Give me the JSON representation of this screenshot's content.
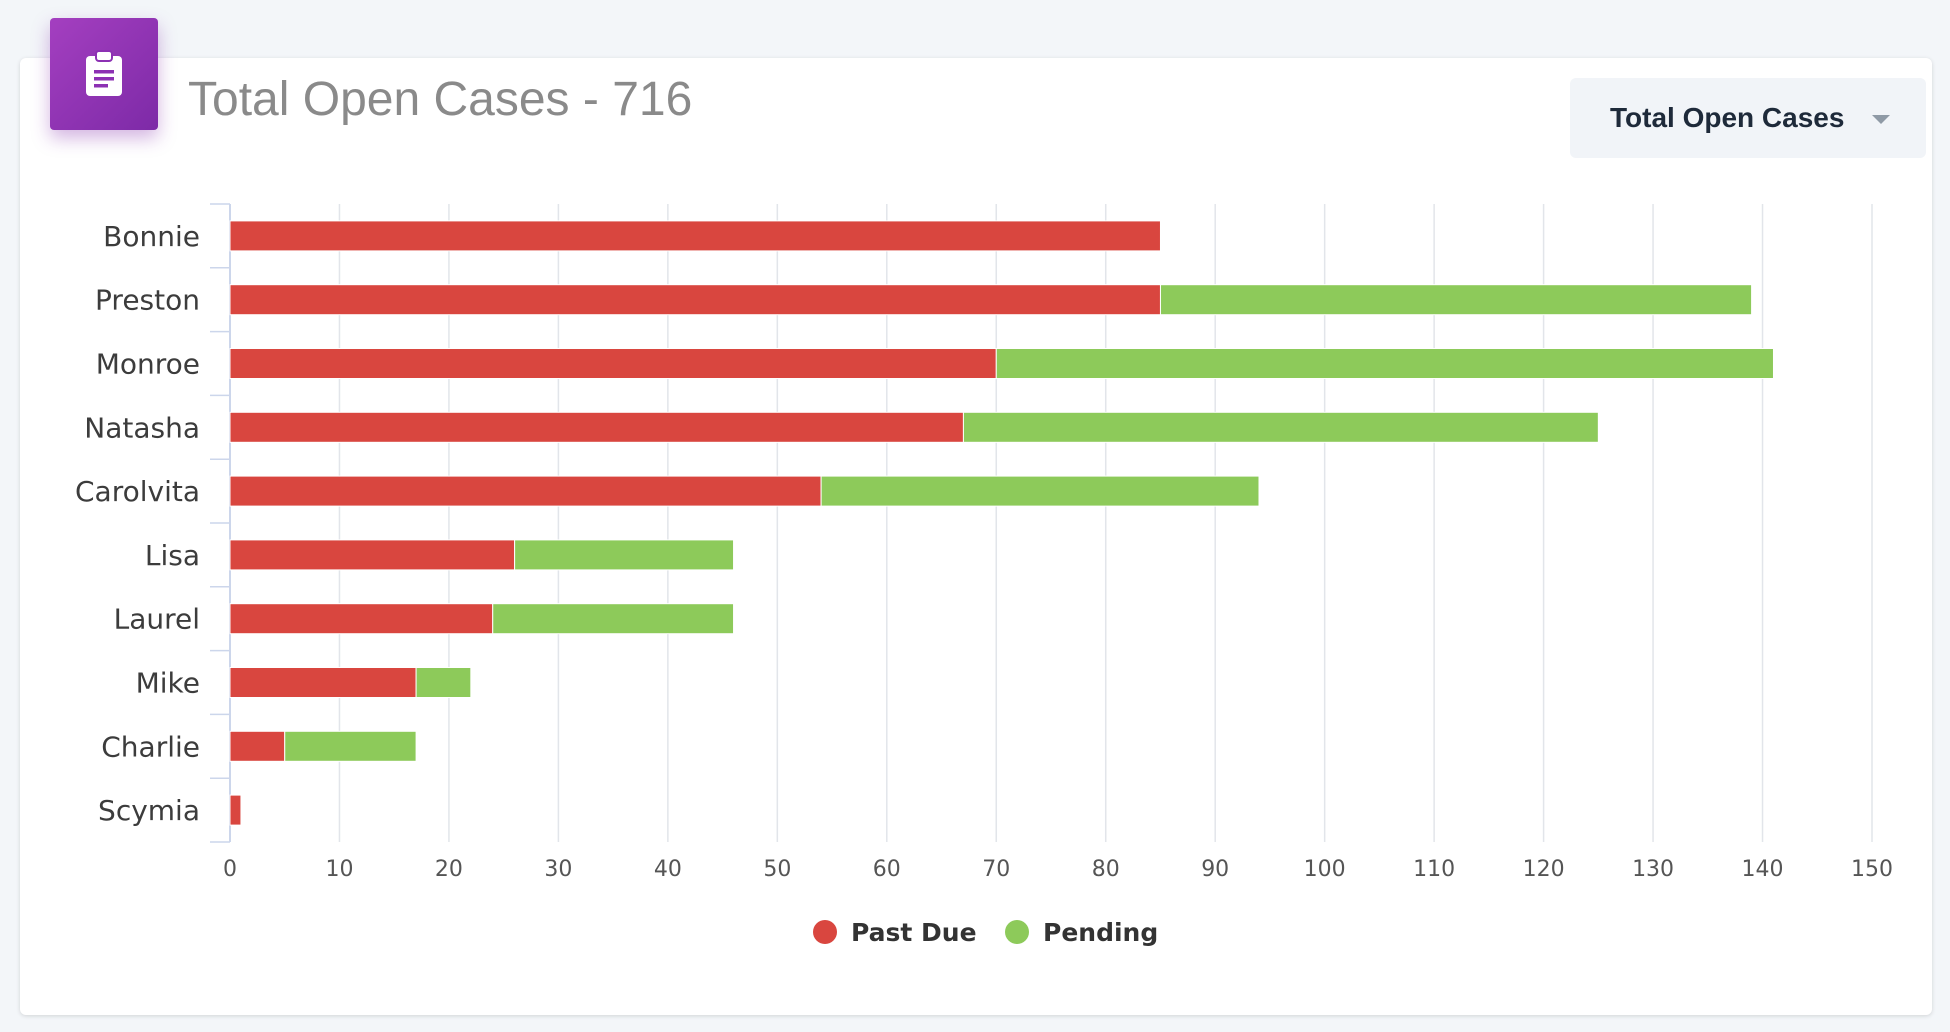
{
  "header": {
    "title": "Total Open Cases - 716",
    "icon": "clipboard-icon",
    "icon_gradient": [
      "#a43fc0",
      "#7d2aa7"
    ]
  },
  "dropdown": {
    "selected": "Total Open Cases"
  },
  "chart_data": {
    "type": "bar",
    "orientation": "horizontal",
    "stacked": true,
    "categories": [
      "Bonnie",
      "Preston",
      "Monroe",
      "Natasha",
      "Carolvita",
      "Lisa",
      "Laurel",
      "Mike",
      "Charlie",
      "Scymia"
    ],
    "series": [
      {
        "name": "Past Due",
        "color": "#d9463f",
        "values": [
          85,
          85,
          70,
          67,
          54,
          26,
          24,
          17,
          5,
          1
        ]
      },
      {
        "name": "Pending",
        "color": "#8dca5a",
        "values": [
          0,
          54,
          71,
          58,
          40,
          20,
          22,
          5,
          12,
          0
        ]
      }
    ],
    "xlim": [
      0,
      150
    ],
    "xticks": [
      0,
      10,
      20,
      30,
      40,
      50,
      60,
      70,
      80,
      90,
      100,
      110,
      120,
      130,
      140,
      150
    ],
    "grid": true,
    "legend": "bottom-center"
  }
}
